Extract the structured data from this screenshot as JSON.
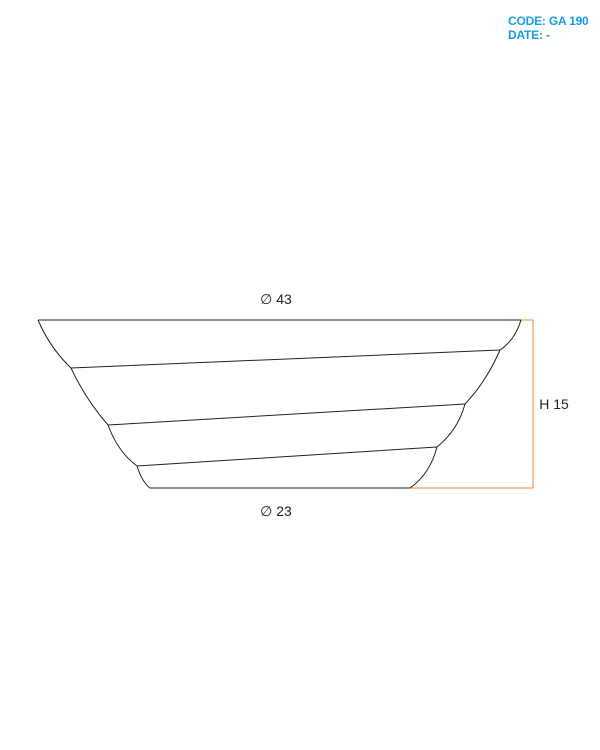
{
  "header": {
    "code_label": "CODE:",
    "code_value": "GA 190",
    "date_label": "DATE:",
    "date_value": "-"
  },
  "dimensions": {
    "top_diameter": "∅ 43",
    "bottom_diameter": "∅ 23",
    "height": "H 15"
  },
  "colors": {
    "header_text": "#1a9be6",
    "outline": "#222222",
    "dimension_line": "#e8883a"
  }
}
